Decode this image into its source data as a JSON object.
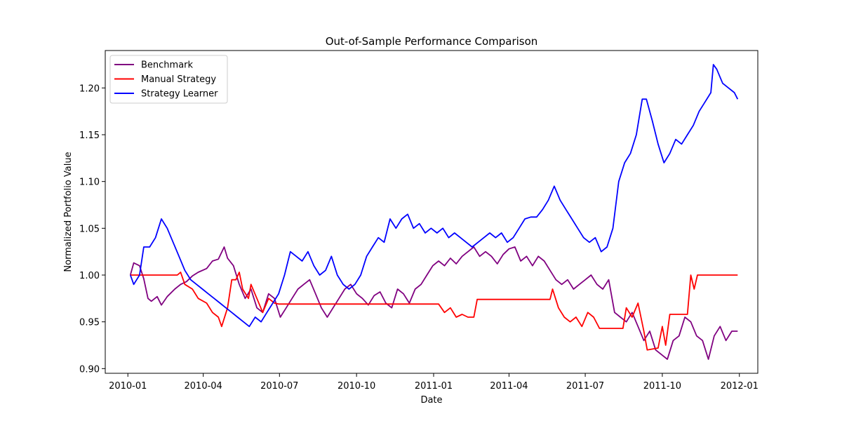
{
  "chart_data": {
    "type": "line",
    "title": "Out-of-Sample Performance Comparison",
    "xlabel": "Date",
    "ylabel": "Normalized Portfolio Value",
    "xlim": [
      "2009-12-05",
      "2012-01-23"
    ],
    "ylim": [
      0.895,
      1.24
    ],
    "x_ticks": [
      "2010-01-01",
      "2010-04-01",
      "2010-07-01",
      "2010-10-01",
      "2011-01-01",
      "2011-04-01",
      "2011-07-01",
      "2011-10-01",
      "2012-01-01"
    ],
    "x_tick_labels": [
      "2010-01",
      "2010-04",
      "2010-07",
      "2010-10",
      "2011-01",
      "2011-04",
      "2011-07",
      "2011-10",
      "2012-01"
    ],
    "y_ticks": [
      0.9,
      0.95,
      1.0,
      1.05,
      1.1,
      1.15,
      1.2
    ],
    "y_tick_labels": [
      "0.90",
      "0.95",
      "1.00",
      "1.05",
      "1.10",
      "1.15",
      "1.20"
    ],
    "grid": false,
    "legend_position": "top-left",
    "series": [
      {
        "name": "Benchmark",
        "color": "#800080",
        "points": [
          [
            "2010-01-04",
            1.0
          ],
          [
            "2010-01-08",
            1.013
          ],
          [
            "2010-01-15",
            1.01
          ],
          [
            "2010-01-20",
            0.996
          ],
          [
            "2010-01-25",
            0.975
          ],
          [
            "2010-01-29",
            0.972
          ],
          [
            "2010-02-05",
            0.977
          ],
          [
            "2010-02-10",
            0.968
          ],
          [
            "2010-02-17",
            0.977
          ],
          [
            "2010-02-26",
            0.985
          ],
          [
            "2010-03-05",
            0.99
          ],
          [
            "2010-03-12",
            0.993
          ],
          [
            "2010-03-19",
            0.999
          ],
          [
            "2010-03-26",
            1.003
          ],
          [
            "2010-04-05",
            1.007
          ],
          [
            "2010-04-12",
            1.015
          ],
          [
            "2010-04-19",
            1.017
          ],
          [
            "2010-04-26",
            1.03
          ],
          [
            "2010-04-30",
            1.018
          ],
          [
            "2010-05-07",
            1.01
          ],
          [
            "2010-05-14",
            0.99
          ],
          [
            "2010-05-21",
            0.975
          ],
          [
            "2010-05-28",
            0.985
          ],
          [
            "2010-06-04",
            0.965
          ],
          [
            "2010-06-11",
            0.96
          ],
          [
            "2010-06-18",
            0.98
          ],
          [
            "2010-06-25",
            0.975
          ],
          [
            "2010-07-02",
            0.955
          ],
          [
            "2010-07-09",
            0.965
          ],
          [
            "2010-07-16",
            0.975
          ],
          [
            "2010-07-23",
            0.985
          ],
          [
            "2010-07-30",
            0.99
          ],
          [
            "2010-08-06",
            0.995
          ],
          [
            "2010-08-13",
            0.98
          ],
          [
            "2010-08-20",
            0.965
          ],
          [
            "2010-08-27",
            0.955
          ],
          [
            "2010-09-03",
            0.965
          ],
          [
            "2010-09-10",
            0.975
          ],
          [
            "2010-09-17",
            0.985
          ],
          [
            "2010-09-24",
            0.99
          ],
          [
            "2010-10-01",
            0.98
          ],
          [
            "2010-10-08",
            0.975
          ],
          [
            "2010-10-15",
            0.968
          ],
          [
            "2010-10-22",
            0.978
          ],
          [
            "2010-10-29",
            0.982
          ],
          [
            "2010-11-05",
            0.97
          ],
          [
            "2010-11-12",
            0.965
          ],
          [
            "2010-11-19",
            0.985
          ],
          [
            "2010-11-26",
            0.98
          ],
          [
            "2010-12-03",
            0.97
          ],
          [
            "2010-12-10",
            0.985
          ],
          [
            "2010-12-17",
            0.99
          ],
          [
            "2010-12-24",
            1.0
          ],
          [
            "2010-12-31",
            1.01
          ],
          [
            "2011-01-07",
            1.015
          ],
          [
            "2011-01-14",
            1.01
          ],
          [
            "2011-01-21",
            1.018
          ],
          [
            "2011-01-28",
            1.012
          ],
          [
            "2011-02-04",
            1.02
          ],
          [
            "2011-02-11",
            1.025
          ],
          [
            "2011-02-18",
            1.03
          ],
          [
            "2011-02-25",
            1.02
          ],
          [
            "2011-03-04",
            1.025
          ],
          [
            "2011-03-11",
            1.02
          ],
          [
            "2011-03-18",
            1.012
          ],
          [
            "2011-03-25",
            1.022
          ],
          [
            "2011-04-01",
            1.028
          ],
          [
            "2011-04-08",
            1.03
          ],
          [
            "2011-04-15",
            1.015
          ],
          [
            "2011-04-22",
            1.02
          ],
          [
            "2011-04-29",
            1.01
          ],
          [
            "2011-05-06",
            1.02
          ],
          [
            "2011-05-13",
            1.015
          ],
          [
            "2011-05-20",
            1.005
          ],
          [
            "2011-05-27",
            0.995
          ],
          [
            "2011-06-03",
            0.99
          ],
          [
            "2011-06-10",
            0.995
          ],
          [
            "2011-06-17",
            0.985
          ],
          [
            "2011-06-24",
            0.99
          ],
          [
            "2011-07-01",
            0.995
          ],
          [
            "2011-07-08",
            1.0
          ],
          [
            "2011-07-15",
            0.99
          ],
          [
            "2011-07-22",
            0.985
          ],
          [
            "2011-07-29",
            0.995
          ],
          [
            "2011-08-05",
            0.96
          ],
          [
            "2011-08-12",
            0.955
          ],
          [
            "2011-08-19",
            0.95
          ],
          [
            "2011-08-26",
            0.96
          ],
          [
            "2011-09-02",
            0.945
          ],
          [
            "2011-09-09",
            0.93
          ],
          [
            "2011-09-16",
            0.94
          ],
          [
            "2011-09-23",
            0.92
          ],
          [
            "2011-09-30",
            0.915
          ],
          [
            "2011-10-07",
            0.91
          ],
          [
            "2011-10-14",
            0.93
          ],
          [
            "2011-10-21",
            0.935
          ],
          [
            "2011-10-28",
            0.955
          ],
          [
            "2011-11-04",
            0.95
          ],
          [
            "2011-11-11",
            0.935
          ],
          [
            "2011-11-18",
            0.93
          ],
          [
            "2011-11-25",
            0.91
          ],
          [
            "2011-12-02",
            0.935
          ],
          [
            "2011-12-09",
            0.945
          ],
          [
            "2011-12-16",
            0.93
          ],
          [
            "2011-12-23",
            0.94
          ],
          [
            "2011-12-30",
            0.94
          ]
        ]
      },
      {
        "name": "Manual Strategy",
        "color": "#ff0000",
        "points": [
          [
            "2010-01-04",
            1.0
          ],
          [
            "2010-03-01",
            1.0
          ],
          [
            "2010-03-05",
            1.003
          ],
          [
            "2010-03-10",
            0.99
          ],
          [
            "2010-03-19",
            0.985
          ],
          [
            "2010-03-26",
            0.975
          ],
          [
            "2010-04-05",
            0.97
          ],
          [
            "2010-04-12",
            0.96
          ],
          [
            "2010-04-19",
            0.955
          ],
          [
            "2010-04-23",
            0.945
          ],
          [
            "2010-04-30",
            0.965
          ],
          [
            "2010-05-05",
            0.995
          ],
          [
            "2010-05-10",
            0.995
          ],
          [
            "2010-05-14",
            1.003
          ],
          [
            "2010-05-18",
            0.985
          ],
          [
            "2010-05-25",
            0.975
          ],
          [
            "2010-05-28",
            0.99
          ],
          [
            "2010-06-04",
            0.975
          ],
          [
            "2010-06-11",
            0.96
          ],
          [
            "2010-06-18",
            0.975
          ],
          [
            "2010-06-25",
            0.97
          ],
          [
            "2010-06-30",
            0.969
          ],
          [
            "2011-01-07",
            0.969
          ],
          [
            "2011-01-14",
            0.96
          ],
          [
            "2011-01-21",
            0.965
          ],
          [
            "2011-01-28",
            0.955
          ],
          [
            "2011-02-04",
            0.958
          ],
          [
            "2011-02-11",
            0.955
          ],
          [
            "2011-02-18",
            0.955
          ],
          [
            "2011-02-22",
            0.974
          ],
          [
            "2011-05-20",
            0.974
          ],
          [
            "2011-05-23",
            0.985
          ],
          [
            "2011-05-30",
            0.965
          ],
          [
            "2011-06-06",
            0.955
          ],
          [
            "2011-06-13",
            0.95
          ],
          [
            "2011-06-20",
            0.955
          ],
          [
            "2011-06-27",
            0.945
          ],
          [
            "2011-07-04",
            0.96
          ],
          [
            "2011-07-11",
            0.955
          ],
          [
            "2011-07-18",
            0.943
          ],
          [
            "2011-08-15",
            0.943
          ],
          [
            "2011-08-19",
            0.965
          ],
          [
            "2011-08-26",
            0.955
          ],
          [
            "2011-09-02",
            0.97
          ],
          [
            "2011-09-09",
            0.94
          ],
          [
            "2011-09-13",
            0.92
          ],
          [
            "2011-09-26",
            0.922
          ],
          [
            "2011-10-01",
            0.945
          ],
          [
            "2011-10-05",
            0.925
          ],
          [
            "2011-10-10",
            0.958
          ],
          [
            "2011-10-14",
            0.958
          ],
          [
            "2011-10-31",
            0.958
          ],
          [
            "2011-11-04",
            1.0
          ],
          [
            "2011-11-08",
            0.985
          ],
          [
            "2011-11-12",
            1.0
          ],
          [
            "2011-12-30",
            1.0
          ]
        ]
      },
      {
        "name": "Strategy Learner",
        "color": "#0000ff",
        "points": [
          [
            "2010-01-04",
            1.0
          ],
          [
            "2010-01-08",
            0.99
          ],
          [
            "2010-01-15",
            1.0
          ],
          [
            "2010-01-20",
            1.03
          ],
          [
            "2010-01-27",
            1.03
          ],
          [
            "2010-02-03",
            1.04
          ],
          [
            "2010-02-10",
            1.06
          ],
          [
            "2010-02-17",
            1.05
          ],
          [
            "2010-02-24",
            1.035
          ],
          [
            "2010-03-03",
            1.02
          ],
          [
            "2010-03-10",
            1.005
          ],
          [
            "2010-03-17",
            0.995
          ],
          [
            "2010-03-24",
            0.99
          ],
          [
            "2010-03-31",
            0.985
          ],
          [
            "2010-04-07",
            0.98
          ],
          [
            "2010-04-14",
            0.975
          ],
          [
            "2010-04-21",
            0.97
          ],
          [
            "2010-04-28",
            0.965
          ],
          [
            "2010-05-05",
            0.96
          ],
          [
            "2010-05-12",
            0.955
          ],
          [
            "2010-05-19",
            0.95
          ],
          [
            "2010-05-26",
            0.945
          ],
          [
            "2010-06-02",
            0.955
          ],
          [
            "2010-06-09",
            0.95
          ],
          [
            "2010-06-16",
            0.96
          ],
          [
            "2010-06-23",
            0.97
          ],
          [
            "2010-06-30",
            0.98
          ],
          [
            "2010-07-07",
            1.0
          ],
          [
            "2010-07-14",
            1.025
          ],
          [
            "2010-07-21",
            1.02
          ],
          [
            "2010-07-28",
            1.015
          ],
          [
            "2010-08-04",
            1.025
          ],
          [
            "2010-08-11",
            1.01
          ],
          [
            "2010-08-18",
            1.0
          ],
          [
            "2010-08-25",
            1.005
          ],
          [
            "2010-09-01",
            1.02
          ],
          [
            "2010-09-08",
            1.0
          ],
          [
            "2010-09-15",
            0.99
          ],
          [
            "2010-09-22",
            0.985
          ],
          [
            "2010-09-29",
            0.99
          ],
          [
            "2010-10-06",
            1.0
          ],
          [
            "2010-10-13",
            1.02
          ],
          [
            "2010-10-20",
            1.03
          ],
          [
            "2010-10-27",
            1.04
          ],
          [
            "2010-11-03",
            1.035
          ],
          [
            "2010-11-10",
            1.06
          ],
          [
            "2010-11-17",
            1.05
          ],
          [
            "2010-11-24",
            1.06
          ],
          [
            "2010-12-01",
            1.065
          ],
          [
            "2010-12-08",
            1.05
          ],
          [
            "2010-12-15",
            1.055
          ],
          [
            "2010-12-22",
            1.045
          ],
          [
            "2010-12-29",
            1.05
          ],
          [
            "2011-01-05",
            1.045
          ],
          [
            "2011-01-12",
            1.05
          ],
          [
            "2011-01-19",
            1.04
          ],
          [
            "2011-01-26",
            1.045
          ],
          [
            "2011-02-02",
            1.04
          ],
          [
            "2011-02-09",
            1.035
          ],
          [
            "2011-02-16",
            1.03
          ],
          [
            "2011-02-23",
            1.035
          ],
          [
            "2011-03-02",
            1.04
          ],
          [
            "2011-03-09",
            1.045
          ],
          [
            "2011-03-16",
            1.04
          ],
          [
            "2011-03-23",
            1.045
          ],
          [
            "2011-03-30",
            1.035
          ],
          [
            "2011-04-06",
            1.04
          ],
          [
            "2011-04-13",
            1.05
          ],
          [
            "2011-04-20",
            1.06
          ],
          [
            "2011-04-27",
            1.062
          ],
          [
            "2011-05-04",
            1.062
          ],
          [
            "2011-05-11",
            1.07
          ],
          [
            "2011-05-18",
            1.08
          ],
          [
            "2011-05-25",
            1.095
          ],
          [
            "2011-06-01",
            1.08
          ],
          [
            "2011-06-08",
            1.07
          ],
          [
            "2011-06-15",
            1.06
          ],
          [
            "2011-06-22",
            1.05
          ],
          [
            "2011-06-29",
            1.04
          ],
          [
            "2011-07-06",
            1.035
          ],
          [
            "2011-07-13",
            1.04
          ],
          [
            "2011-07-20",
            1.025
          ],
          [
            "2011-07-27",
            1.03
          ],
          [
            "2011-08-03",
            1.05
          ],
          [
            "2011-08-10",
            1.1
          ],
          [
            "2011-08-17",
            1.12
          ],
          [
            "2011-08-24",
            1.13
          ],
          [
            "2011-08-31",
            1.15
          ],
          [
            "2011-09-07",
            1.188
          ],
          [
            "2011-09-12",
            1.188
          ],
          [
            "2011-09-19",
            1.165
          ],
          [
            "2011-09-26",
            1.14
          ],
          [
            "2011-10-03",
            1.12
          ],
          [
            "2011-10-10",
            1.13
          ],
          [
            "2011-10-17",
            1.145
          ],
          [
            "2011-10-24",
            1.14
          ],
          [
            "2011-10-31",
            1.15
          ],
          [
            "2011-11-07",
            1.16
          ],
          [
            "2011-11-14",
            1.175
          ],
          [
            "2011-11-21",
            1.185
          ],
          [
            "2011-11-28",
            1.195
          ],
          [
            "2011-12-01",
            1.225
          ],
          [
            "2011-12-05",
            1.22
          ],
          [
            "2011-12-12",
            1.205
          ],
          [
            "2011-12-19",
            1.2
          ],
          [
            "2011-12-26",
            1.195
          ],
          [
            "2011-12-30",
            1.188
          ]
        ]
      }
    ]
  }
}
